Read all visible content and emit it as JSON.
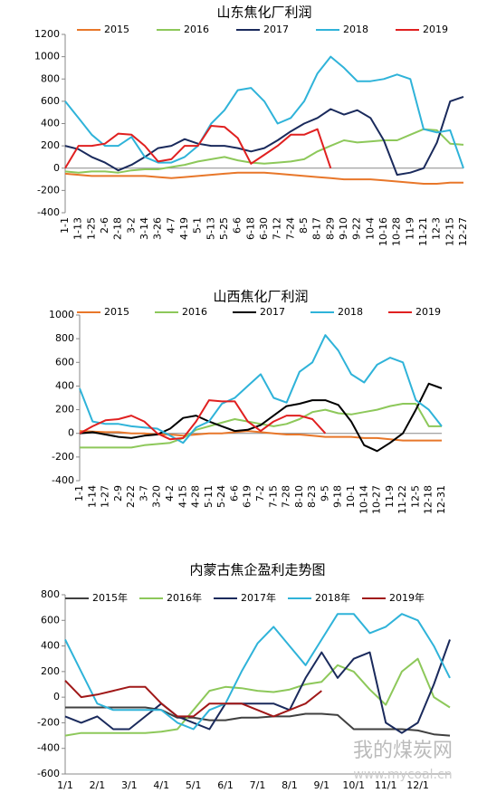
{
  "chart_data": [
    {
      "type": "line",
      "title": "山东焦化厂利润",
      "categories": [
        "1-1",
        "1-13",
        "1-25",
        "2-6",
        "2-18",
        "3-2",
        "3-14",
        "3-26",
        "4-7",
        "4-19",
        "5-1",
        "5-13",
        "5-25",
        "6-6",
        "6-18",
        "6-30",
        "7-12",
        "7-24",
        "8-5",
        "8-17",
        "8-29",
        "9-10",
        "9-22",
        "10-4",
        "10-16",
        "10-28",
        "11-9",
        "11-21",
        "12-3",
        "12-15",
        "12-27"
      ],
      "ylim": [
        -400,
        1200
      ],
      "yticks": [
        -400,
        -200,
        0,
        200,
        400,
        600,
        800,
        1000,
        1200
      ],
      "series": [
        {
          "name": "2015",
          "color": "#e8772a",
          "values": [
            -50,
            -60,
            -70,
            -70,
            -70,
            -70,
            -70,
            -80,
            -90,
            -80,
            -70,
            -60,
            -50,
            -40,
            -40,
            -40,
            -50,
            -60,
            -70,
            -80,
            -90,
            -100,
            -100,
            -100,
            -110,
            -120,
            -130,
            -140,
            -140,
            -130,
            -130
          ]
        },
        {
          "name": "2016",
          "color": "#8dc85a",
          "values": [
            -30,
            -40,
            -30,
            -30,
            -40,
            -20,
            -10,
            -10,
            10,
            30,
            60,
            80,
            100,
            70,
            50,
            40,
            50,
            60,
            80,
            150,
            200,
            250,
            230,
            240,
            250,
            250,
            300,
            350,
            340,
            220,
            210
          ]
        },
        {
          "name": "2017",
          "color": "#1a2a5c",
          "values": [
            200,
            170,
            100,
            50,
            -20,
            30,
            100,
            180,
            200,
            260,
            220,
            200,
            200,
            180,
            150,
            180,
            250,
            330,
            400,
            450,
            530,
            480,
            520,
            450,
            250,
            -60,
            -40,
            0,
            230,
            600,
            640
          ]
        },
        {
          "name": "2018",
          "color": "#2fb3d9",
          "values": [
            600,
            450,
            300,
            200,
            200,
            280,
            100,
            50,
            50,
            100,
            200,
            400,
            520,
            700,
            720,
            600,
            400,
            450,
            600,
            850,
            1000,
            900,
            780,
            780,
            800,
            840,
            800,
            350,
            320,
            340,
            0
          ]
        },
        {
          "name": "2019",
          "color": "#e02020",
          "values": [
            0,
            200,
            200,
            220,
            310,
            300,
            200,
            60,
            80,
            200,
            200,
            380,
            370,
            270,
            40,
            120,
            200,
            300,
            300,
            350,
            0,
            null,
            null,
            null,
            null,
            null,
            null,
            null,
            null,
            null,
            null
          ]
        }
      ]
    },
    {
      "type": "line",
      "title": "山西焦化厂利润",
      "categories": [
        "1-1",
        "1-14",
        "1-27",
        "2-9",
        "2-22",
        "3-7",
        "3-20",
        "4-2",
        "4-15",
        "4-28",
        "5-11",
        "5-24",
        "6-6",
        "6-19",
        "7-2",
        "7-15",
        "7-28",
        "8-10",
        "8-23",
        "9-5",
        "9-18",
        "10-1",
        "10-14",
        "10-27",
        "11-9",
        "11-22",
        "12-5",
        "12-18",
        "12-31"
      ],
      "ylim": [
        -400,
        1000
      ],
      "yticks": [
        -400,
        -200,
        0,
        200,
        400,
        600,
        800,
        1000
      ],
      "series": [
        {
          "name": "2015",
          "color": "#e8772a",
          "values": [
            20,
            15,
            10,
            10,
            0,
            0,
            -10,
            -10,
            -20,
            -10,
            0,
            0,
            10,
            20,
            10,
            0,
            -10,
            -10,
            -20,
            -30,
            -30,
            -30,
            -40,
            -40,
            -50,
            -60,
            -60,
            -60,
            -60
          ]
        },
        {
          "name": "2016",
          "color": "#8dc85a",
          "values": [
            -120,
            -120,
            -120,
            -120,
            -120,
            -100,
            -90,
            -80,
            -40,
            30,
            60,
            90,
            120,
            100,
            80,
            60,
            80,
            120,
            180,
            200,
            170,
            160,
            180,
            200,
            230,
            250,
            250,
            60,
            60
          ]
        },
        {
          "name": "2017",
          "color": "#000000",
          "values": [
            0,
            10,
            -10,
            -30,
            -40,
            -20,
            -10,
            40,
            130,
            150,
            100,
            60,
            20,
            30,
            70,
            150,
            230,
            250,
            280,
            280,
            240,
            100,
            -100,
            -150,
            -80,
            0,
            200,
            420,
            380
          ]
        },
        {
          "name": "2018",
          "color": "#2fb3d9",
          "values": [
            380,
            100,
            80,
            80,
            60,
            50,
            40,
            -20,
            -80,
            50,
            100,
            250,
            300,
            400,
            500,
            300,
            260,
            520,
            600,
            830,
            700,
            500,
            430,
            580,
            640,
            600,
            280,
            200,
            60
          ]
        },
        {
          "name": "2019",
          "color": "#e02020",
          "values": [
            0,
            60,
            110,
            120,
            150,
            100,
            0,
            -50,
            -40,
            100,
            280,
            270,
            270,
            100,
            20,
            100,
            150,
            150,
            120,
            0,
            null,
            null,
            null,
            null,
            null,
            null,
            null,
            null,
            null
          ]
        }
      ]
    },
    {
      "type": "line",
      "title": "内蒙古焦企盈利走势图",
      "categories": [
        "1/1",
        null,
        "2/1",
        null,
        "3/1",
        null,
        "4/1",
        null,
        "5/1",
        null,
        "6/1",
        null,
        "7/1",
        null,
        "8/1",
        null,
        "9/1",
        null,
        "10/1",
        null,
        "11/1",
        null,
        "12/1",
        null,
        null
      ],
      "ylim": [
        -600,
        800
      ],
      "yticks": [
        -600,
        -400,
        -200,
        0,
        200,
        400,
        600,
        800
      ],
      "watermark": "我的煤炭网",
      "watermark_url": "www.mycoal.cn",
      "series": [
        {
          "name": "2015年",
          "color": "#404040",
          "values": [
            -80,
            -80,
            -80,
            -80,
            -80,
            -80,
            -100,
            -160,
            -160,
            -180,
            -180,
            -160,
            -160,
            -150,
            -150,
            -130,
            -130,
            -140,
            -250,
            -250,
            -250,
            -250,
            -260,
            -290,
            -300
          ]
        },
        {
          "name": "2016年",
          "color": "#8dc85a",
          "values": [
            -300,
            -280,
            -280,
            -280,
            -280,
            -280,
            -270,
            -250,
            -100,
            50,
            80,
            70,
            50,
            40,
            60,
            100,
            120,
            250,
            200,
            60,
            -60,
            200,
            300,
            0,
            -80
          ]
        },
        {
          "name": "2017年",
          "color": "#1a2a5c",
          "values": [
            -150,
            -200,
            -150,
            -250,
            -250,
            -150,
            -50,
            -150,
            -200,
            -250,
            -50,
            -50,
            -50,
            -50,
            -100,
            150,
            350,
            150,
            300,
            350,
            -200,
            -280,
            -200,
            100,
            450
          ]
        },
        {
          "name": "2018年",
          "color": "#2fb3d9",
          "values": [
            450,
            200,
            -50,
            -100,
            -100,
            -100,
            -100,
            -200,
            -250,
            -100,
            -50,
            200,
            420,
            550,
            400,
            250,
            450,
            650,
            650,
            500,
            550,
            650,
            600,
            400,
            150
          ]
        },
        {
          "name": "2019年",
          "color": "#a01818",
          "values": [
            130,
            0,
            20,
            50,
            80,
            80,
            -50,
            -150,
            -150,
            -50,
            -50,
            -50,
            -100,
            -150,
            -100,
            -50,
            50,
            null,
            null,
            null,
            null,
            null,
            null,
            null,
            null
          ]
        }
      ]
    }
  ]
}
